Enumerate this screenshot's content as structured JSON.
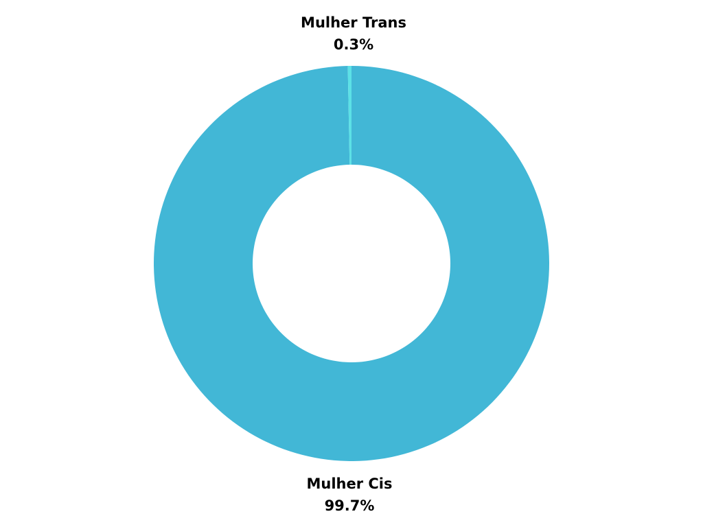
{
  "chart_data": {
    "type": "pie",
    "variant": "donut",
    "title": "",
    "slices": [
      {
        "label": "Mulher Cis",
        "value": 99.7,
        "value_label": "99.7%",
        "color": "#42b7d6"
      },
      {
        "label": "Mulher Trans",
        "value": 0.3,
        "value_label": "0.3%",
        "color": "#5ce1e6"
      }
    ]
  }
}
